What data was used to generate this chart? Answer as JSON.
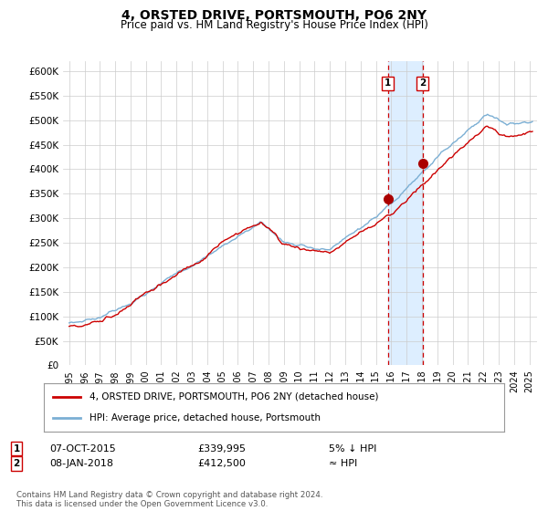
{
  "title": "4, ORSTED DRIVE, PORTSMOUTH, PO6 2NY",
  "subtitle": "Price paid vs. HM Land Registry's House Price Index (HPI)",
  "ylim": [
    0,
    620000
  ],
  "yticks": [
    0,
    50000,
    100000,
    150000,
    200000,
    250000,
    300000,
    350000,
    400000,
    450000,
    500000,
    550000,
    600000
  ],
  "ytick_labels": [
    "£0",
    "£50K",
    "£100K",
    "£150K",
    "£200K",
    "£250K",
    "£300K",
    "£350K",
    "£400K",
    "£450K",
    "£500K",
    "£550K",
    "£600K"
  ],
  "hpi_color": "#7bafd4",
  "price_color": "#cc0000",
  "marker_color": "#aa0000",
  "dashed_line_color": "#cc0000",
  "shade_color": "#ddeeff",
  "annotation1_date": "07-OCT-2015",
  "annotation1_price": "£339,995",
  "annotation1_hpi": "5% ↓ HPI",
  "annotation2_date": "08-JAN-2018",
  "annotation2_price": "£412,500",
  "annotation2_hpi": "≈ HPI",
  "legend_label1": "4, ORSTED DRIVE, PORTSMOUTH, PO6 2NY (detached house)",
  "legend_label2": "HPI: Average price, detached house, Portsmouth",
  "footer": "Contains HM Land Registry data © Crown copyright and database right 2024.\nThis data is licensed under the Open Government Licence v3.0.",
  "sale1_year": 2015.77,
  "sale1_value": 339995,
  "sale2_year": 2018.03,
  "sale2_value": 412500
}
